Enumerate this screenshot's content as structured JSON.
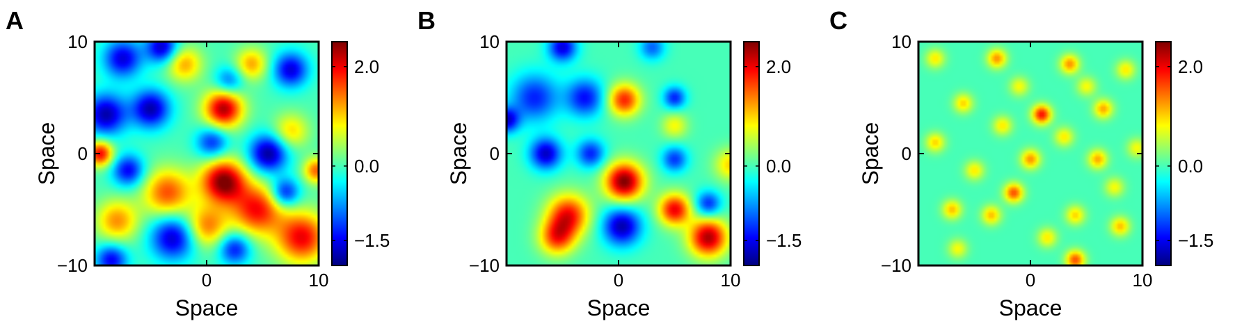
{
  "colormap": [
    "#00007f",
    "#0000ff",
    "#007fff",
    "#00ffff",
    "#7fff7f",
    "#ffff00",
    "#ff7f00",
    "#ff0000",
    "#7f0000"
  ],
  "chart_data": [
    {
      "type": "heatmap",
      "panel": "A",
      "xlabel": "Space",
      "ylabel": "Space",
      "xlim": [
        -10,
        10
      ],
      "ylim": [
        -10,
        10
      ],
      "xticks": [
        {
          "value": 0,
          "label": "0"
        },
        {
          "value": 10,
          "label": "10"
        }
      ],
      "yticks": [
        {
          "value": -10,
          "label": "−10"
        },
        {
          "value": 0,
          "label": "0"
        },
        {
          "value": 10,
          "label": "10"
        }
      ],
      "colorbar": {
        "range": [
          -2.0,
          2.5
        ],
        "ticks": [
          {
            "value": -1.5,
            "label": "−1.5"
          },
          {
            "value": 0.0,
            "label": "0.0"
          },
          {
            "value": 2.0,
            "label": "2.0"
          }
        ]
      },
      "blobs": [
        {
          "x": 1.5,
          "y": 4.0,
          "s": 1.2,
          "a": 2.3
        },
        {
          "x": 1.5,
          "y": -2.5,
          "s": 1.4,
          "a": 2.5
        },
        {
          "x": -3.5,
          "y": -3.5,
          "s": 1.5,
          "a": 1.6
        },
        {
          "x": 4.5,
          "y": -5.0,
          "s": 1.6,
          "a": 1.9
        },
        {
          "x": 8.5,
          "y": -7.5,
          "s": 1.6,
          "a": 2.0
        },
        {
          "x": 0.0,
          "y": -6.5,
          "s": 1.3,
          "a": 1.4
        },
        {
          "x": -8.0,
          "y": -6.0,
          "s": 1.3,
          "a": 1.3
        },
        {
          "x": -2.0,
          "y": 8.0,
          "s": 1.1,
          "a": 1.2
        },
        {
          "x": 4.0,
          "y": 8.0,
          "s": 1.0,
          "a": 1.2
        },
        {
          "x": 7.5,
          "y": 2.0,
          "s": 1.1,
          "a": 1.0
        },
        {
          "x": -9.5,
          "y": 0.0,
          "s": 0.8,
          "a": 2.0
        },
        {
          "x": 9.8,
          "y": -1.5,
          "s": 0.8,
          "a": 1.5
        },
        {
          "x": -5.0,
          "y": 4.0,
          "s": 1.2,
          "a": -1.8
        },
        {
          "x": -9.0,
          "y": 3.5,
          "s": 1.3,
          "a": -1.8
        },
        {
          "x": -7.5,
          "y": 8.5,
          "s": 1.2,
          "a": -1.6
        },
        {
          "x": -4.0,
          "y": 9.5,
          "s": 1.0,
          "a": -1.7
        },
        {
          "x": 5.5,
          "y": 0.0,
          "s": 1.2,
          "a": -1.9
        },
        {
          "x": 7.5,
          "y": 7.5,
          "s": 1.1,
          "a": -1.6
        },
        {
          "x": -3.0,
          "y": -7.5,
          "s": 1.4,
          "a": -1.7
        },
        {
          "x": -7.0,
          "y": -1.5,
          "s": 1.0,
          "a": -1.5
        },
        {
          "x": 0.5,
          "y": 1.0,
          "s": 1.0,
          "a": -1.3
        },
        {
          "x": 7.0,
          "y": -3.5,
          "s": 0.9,
          "a": -1.5
        },
        {
          "x": -8.5,
          "y": -9.5,
          "s": 1.0,
          "a": -1.5
        },
        {
          "x": 2.5,
          "y": -8.5,
          "s": 1.0,
          "a": -1.4
        },
        {
          "x": 2.0,
          "y": 6.5,
          "s": 0.9,
          "a": -1.0
        }
      ]
    },
    {
      "type": "heatmap",
      "panel": "B",
      "xlabel": "Space",
      "ylabel": "Space",
      "xlim": [
        -10,
        10
      ],
      "ylim": [
        -10,
        10
      ],
      "xticks": [
        {
          "value": 0,
          "label": "0"
        },
        {
          "value": 10,
          "label": "10"
        }
      ],
      "yticks": [
        {
          "value": -10,
          "label": "−10"
        },
        {
          "value": 0,
          "label": "0"
        },
        {
          "value": 10,
          "label": "10"
        }
      ],
      "colorbar": {
        "range": [
          -2.0,
          2.5
        ],
        "ticks": [
          {
            "value": -1.5,
            "label": "−1.5"
          },
          {
            "value": 0.0,
            "label": "0.0"
          },
          {
            "value": 2.0,
            "label": "2.0"
          }
        ]
      },
      "blobs": [
        {
          "x": 0.5,
          "y": 4.8,
          "s": 1.0,
          "a": 1.8
        },
        {
          "x": 0.5,
          "y": -2.5,
          "s": 1.2,
          "a": 2.5
        },
        {
          "x": -4.5,
          "y": -5.5,
          "s": 1.3,
          "a": 1.9
        },
        {
          "x": -5.5,
          "y": -7.5,
          "s": 1.1,
          "a": 1.6
        },
        {
          "x": 5.0,
          "y": -5.0,
          "s": 1.0,
          "a": 2.0
        },
        {
          "x": 8.0,
          "y": -7.5,
          "s": 1.2,
          "a": 2.3
        },
        {
          "x": 10.0,
          "y": -1.0,
          "s": 1.0,
          "a": 1.0
        },
        {
          "x": 5.0,
          "y": 2.5,
          "s": 0.8,
          "a": 0.8
        },
        {
          "x": -7.5,
          "y": 5.0,
          "s": 1.5,
          "a": -1.3
        },
        {
          "x": -3.0,
          "y": 5.0,
          "s": 1.2,
          "a": -1.4
        },
        {
          "x": -5.0,
          "y": 9.5,
          "s": 0.9,
          "a": -1.6
        },
        {
          "x": -6.5,
          "y": 0.0,
          "s": 1.0,
          "a": -1.7
        },
        {
          "x": -2.5,
          "y": 0.0,
          "s": 0.9,
          "a": -1.3
        },
        {
          "x": 0.3,
          "y": -6.5,
          "s": 1.2,
          "a": -1.8
        },
        {
          "x": 5.0,
          "y": -0.5,
          "s": 0.8,
          "a": -1.2
        },
        {
          "x": 5.0,
          "y": 5.0,
          "s": 0.7,
          "a": -1.3
        },
        {
          "x": 8.0,
          "y": -4.5,
          "s": 0.8,
          "a": -1.3
        },
        {
          "x": -10.0,
          "y": 3.0,
          "s": 0.8,
          "a": -1.6
        },
        {
          "x": 3.0,
          "y": 9.5,
          "s": 0.8,
          "a": -1.0
        }
      ]
    },
    {
      "type": "heatmap",
      "panel": "C",
      "xlabel": "Space",
      "ylabel": "Space",
      "xlim": [
        -10,
        10
      ],
      "ylim": [
        -10,
        10
      ],
      "xticks": [
        {
          "value": 0,
          "label": "0"
        },
        {
          "value": 10,
          "label": "10"
        }
      ],
      "yticks": [
        {
          "value": -10,
          "label": "−10"
        },
        {
          "value": 0,
          "label": "0"
        },
        {
          "value": 10,
          "label": "10"
        }
      ],
      "colorbar": {
        "range": [
          -2.0,
          2.5
        ],
        "ticks": [
          {
            "value": -1.5,
            "label": "−1.5"
          },
          {
            "value": 0.0,
            "label": "0.0"
          },
          {
            "value": 2.0,
            "label": "2.0"
          }
        ]
      },
      "blobs": [
        {
          "x": 1.0,
          "y": 3.5,
          "s": 0.6,
          "a": 1.9
        },
        {
          "x": -1.5,
          "y": -3.5,
          "s": 0.6,
          "a": 1.6
        },
        {
          "x": 4.0,
          "y": -9.5,
          "s": 0.6,
          "a": 1.6
        },
        {
          "x": -3.0,
          "y": 8.5,
          "s": 0.6,
          "a": 1.3
        },
        {
          "x": 3.5,
          "y": 8.0,
          "s": 0.6,
          "a": 1.3
        },
        {
          "x": 6.5,
          "y": 4.0,
          "s": 0.6,
          "a": 1.2
        },
        {
          "x": -6.0,
          "y": 4.5,
          "s": 0.6,
          "a": 1.0
        },
        {
          "x": 0.0,
          "y": -0.5,
          "s": 0.6,
          "a": 1.3
        },
        {
          "x": 6.0,
          "y": -0.5,
          "s": 0.6,
          "a": 1.2
        },
        {
          "x": -7.0,
          "y": -5.0,
          "s": 0.6,
          "a": 1.1
        },
        {
          "x": -3.5,
          "y": -5.5,
          "s": 0.6,
          "a": 1.1
        },
        {
          "x": 4.0,
          "y": -5.5,
          "s": 0.6,
          "a": 1.0
        },
        {
          "x": 8.0,
          "y": -6.5,
          "s": 0.6,
          "a": 1.1
        },
        {
          "x": -8.5,
          "y": 1.0,
          "s": 0.6,
          "a": 1.0
        },
        {
          "x": 3.0,
          "y": 1.5,
          "s": 0.6,
          "a": 0.9
        },
        {
          "x": -2.5,
          "y": 2.5,
          "s": 0.6,
          "a": 0.9
        },
        {
          "x": 8.5,
          "y": 7.5,
          "s": 0.6,
          "a": 0.9
        },
        {
          "x": -8.5,
          "y": 8.5,
          "s": 0.6,
          "a": 0.9
        },
        {
          "x": -5.0,
          "y": -1.5,
          "s": 0.6,
          "a": 0.9
        },
        {
          "x": 1.5,
          "y": -7.5,
          "s": 0.6,
          "a": 0.9
        },
        {
          "x": 7.5,
          "y": -3.0,
          "s": 0.6,
          "a": 0.8
        },
        {
          "x": -1.0,
          "y": 6.0,
          "s": 0.6,
          "a": 0.8
        },
        {
          "x": 5.0,
          "y": 6.0,
          "s": 0.6,
          "a": 0.8
        },
        {
          "x": -6.5,
          "y": -8.5,
          "s": 0.6,
          "a": 0.8
        },
        {
          "x": 9.5,
          "y": 0.5,
          "s": 0.6,
          "a": 0.8
        }
      ]
    }
  ]
}
